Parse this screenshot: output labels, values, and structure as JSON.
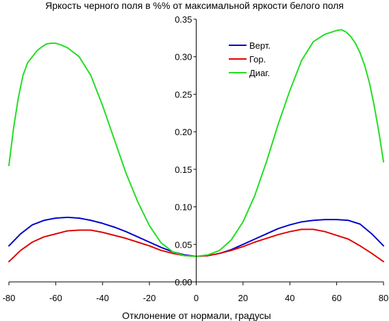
{
  "chart_data": {
    "type": "line",
    "title": "Яркость черного поля в %% от максимальной яркости белого поля",
    "xlabel": "Отклонение от нормали, градусы",
    "ylabel": "",
    "xlim": [
      -80,
      80
    ],
    "ylim": [
      0,
      0.35
    ],
    "x_ticks": [
      -80,
      -60,
      -40,
      -20,
      0,
      20,
      40,
      60,
      80
    ],
    "x_tick_labels": [
      "-80",
      "-60",
      "-40",
      "-20",
      "0",
      "20",
      "40",
      "60",
      "80"
    ],
    "y_ticks": [
      0,
      0.05,
      0.1,
      0.15,
      0.2,
      0.25,
      0.3,
      0.35
    ],
    "y_tick_labels": [
      "0.00",
      "0.05",
      "0.10",
      "0.15",
      "0.20",
      "0.25",
      "0.30",
      "0.35"
    ],
    "grid": false,
    "legend_position": "top-right",
    "series": [
      {
        "name": "Верт.",
        "color": "#0000cc",
        "x": [
          -80,
          -75,
          -70,
          -65,
          -60,
          -55,
          -50,
          -45,
          -40,
          -35,
          -30,
          -25,
          -20,
          -15,
          -10,
          -5,
          0,
          5,
          10,
          15,
          20,
          25,
          30,
          35,
          40,
          45,
          50,
          55,
          60,
          65,
          70,
          75,
          80
        ],
        "y": [
          0.048,
          0.064,
          0.076,
          0.082,
          0.085,
          0.086,
          0.085,
          0.082,
          0.078,
          0.073,
          0.067,
          0.06,
          0.053,
          0.046,
          0.04,
          0.036,
          0.034,
          0.035,
          0.038,
          0.043,
          0.05,
          0.057,
          0.064,
          0.071,
          0.076,
          0.08,
          0.082,
          0.083,
          0.083,
          0.082,
          0.077,
          0.064,
          0.048
        ]
      },
      {
        "name": "Гор.",
        "color": "#e00000",
        "x": [
          -80,
          -75,
          -70,
          -65,
          -60,
          -55,
          -50,
          -45,
          -40,
          -35,
          -30,
          -25,
          -20,
          -15,
          -10,
          -5,
          0,
          5,
          10,
          15,
          20,
          25,
          30,
          35,
          40,
          45,
          50,
          55,
          60,
          65,
          70,
          75,
          80
        ],
        "y": [
          0.027,
          0.042,
          0.053,
          0.06,
          0.064,
          0.068,
          0.069,
          0.069,
          0.066,
          0.062,
          0.058,
          0.053,
          0.048,
          0.042,
          0.038,
          0.035,
          0.034,
          0.035,
          0.038,
          0.042,
          0.047,
          0.053,
          0.058,
          0.063,
          0.067,
          0.07,
          0.07,
          0.067,
          0.062,
          0.057,
          0.048,
          0.038,
          0.027
        ]
      },
      {
        "name": "Диаг.",
        "color": "#22dd22",
        "x": [
          -80,
          -78,
          -76,
          -74,
          -72,
          -70,
          -68,
          -66,
          -64,
          -62,
          -60,
          -58,
          -55,
          -50,
          -45,
          -40,
          -35,
          -30,
          -25,
          -20,
          -15,
          -10,
          -5,
          0,
          5,
          10,
          15,
          20,
          25,
          30,
          35,
          40,
          45,
          50,
          55,
          60,
          62,
          64,
          66,
          68,
          70,
          72,
          74,
          76,
          78,
          80
        ],
        "y": [
          0.155,
          0.205,
          0.245,
          0.275,
          0.292,
          0.3,
          0.308,
          0.313,
          0.317,
          0.318,
          0.318,
          0.316,
          0.312,
          0.3,
          0.275,
          0.235,
          0.19,
          0.145,
          0.107,
          0.075,
          0.052,
          0.04,
          0.035,
          0.034,
          0.036,
          0.042,
          0.056,
          0.08,
          0.115,
          0.16,
          0.21,
          0.255,
          0.295,
          0.32,
          0.33,
          0.335,
          0.336,
          0.333,
          0.327,
          0.318,
          0.305,
          0.288,
          0.265,
          0.235,
          0.2,
          0.16
        ]
      }
    ]
  }
}
